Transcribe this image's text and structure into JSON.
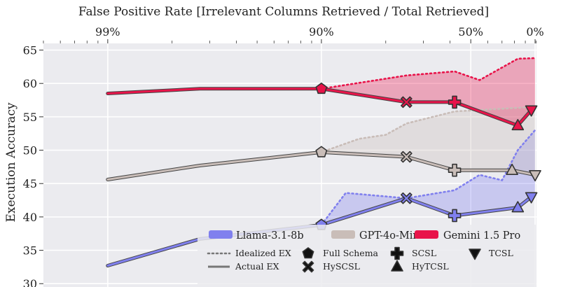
{
  "chart_data": {
    "type": "line",
    "title": "False Positive Rate [Irrelevant Columns Retrieved / Total Retrieved]",
    "ylabel": "Execution Accuracy",
    "xlabel": "",
    "xscale": "log (100 - FPR)",
    "xlim": [
      99.5,
      -1.5
    ],
    "ylim": [
      29.5,
      66
    ],
    "x_ticks": [
      {
        "value": 99,
        "label": "99%"
      },
      {
        "value": 90,
        "label": "90%"
      },
      {
        "value": 50,
        "label": "50%"
      },
      {
        "value": 0,
        "label": "0%"
      }
    ],
    "y_ticks": [
      30,
      35,
      40,
      45,
      50,
      55,
      60,
      65
    ],
    "grid": true,
    "series": [
      {
        "name": "Llama-3.1-8b",
        "color": "#8080ee",
        "actual": [
          [
            99,
            32.7
          ],
          [
            97.3,
            36.7
          ],
          [
            90,
            38.8
          ],
          [
            75,
            42.8
          ],
          [
            58,
            40.2
          ],
          [
            17,
            41.4
          ],
          [
            4,
            43.0
          ]
        ],
        "idealized": [
          [
            99,
            32.7
          ],
          [
            97.3,
            36.7
          ],
          [
            90,
            38.8
          ],
          [
            87,
            43.6
          ],
          [
            75,
            42.8
          ],
          [
            58,
            44.0
          ],
          [
            45,
            46.3
          ],
          [
            30,
            45.5
          ],
          [
            17,
            50.0
          ],
          [
            0,
            53.0
          ]
        ],
        "markers": [
          {
            "x": 90,
            "y": 38.8,
            "method": "Full Schema"
          },
          {
            "x": 75,
            "y": 42.8,
            "method": "HySCSL"
          },
          {
            "x": 58,
            "y": 40.2,
            "method": "SCSL"
          },
          {
            "x": 17,
            "y": 41.4,
            "method": "HyTCSL"
          },
          {
            "x": 4,
            "y": 43.0,
            "method": "TCSL"
          }
        ]
      },
      {
        "name": "GPT-4o-Mini",
        "color": "#c9bdb8",
        "actual": [
          [
            99,
            45.6
          ],
          [
            97.3,
            47.7
          ],
          [
            90,
            49.7
          ],
          [
            75,
            49.0
          ],
          [
            58,
            47.0
          ],
          [
            22,
            47.0
          ],
          [
            0,
            46.3
          ]
        ],
        "idealized": [
          [
            99,
            45.6
          ],
          [
            97.3,
            47.7
          ],
          [
            90,
            49.7
          ],
          [
            85,
            51.7
          ],
          [
            80,
            52.3
          ],
          [
            75,
            54.0
          ],
          [
            58,
            55.8
          ],
          [
            0,
            56.5
          ]
        ],
        "markers": [
          {
            "x": 90,
            "y": 49.7,
            "method": "Full Schema"
          },
          {
            "x": 75,
            "y": 49.0,
            "method": "HySCSL"
          },
          {
            "x": 58,
            "y": 47.0,
            "method": "SCSL"
          },
          {
            "x": 22,
            "y": 47.0,
            "method": "HyTCSL"
          },
          {
            "x": 0,
            "y": 46.3,
            "method": "TCSL"
          }
        ]
      },
      {
        "name": "Gemini 1.5 Pro",
        "color": "#e8144a",
        "actual": [
          [
            99,
            58.5
          ],
          [
            97.3,
            59.2
          ],
          [
            90,
            59.2
          ],
          [
            75,
            57.2
          ],
          [
            58,
            57.2
          ],
          [
            17,
            53.7
          ],
          [
            4,
            56.0
          ]
        ],
        "idealized": [
          [
            99,
            58.5
          ],
          [
            97.3,
            59.2
          ],
          [
            90,
            59.2
          ],
          [
            75,
            61.2
          ],
          [
            58,
            61.8
          ],
          [
            45,
            60.5
          ],
          [
            17,
            63.7
          ],
          [
            0,
            63.8
          ]
        ],
        "markers": [
          {
            "x": 90,
            "y": 59.2,
            "method": "Full Schema"
          },
          {
            "x": 75,
            "y": 57.2,
            "method": "HySCSL"
          },
          {
            "x": 58,
            "y": 57.2,
            "method": "SCSL"
          },
          {
            "x": 17,
            "y": 53.7,
            "method": "HyTCSL"
          },
          {
            "x": 4,
            "y": 56.0,
            "method": "TCSL"
          }
        ]
      }
    ],
    "legend": {
      "placement": "bottom-right",
      "line_styles": [
        {
          "label": "Idealized EX",
          "style": "dotted"
        },
        {
          "label": "Actual EX",
          "style": "solid"
        }
      ],
      "methods": [
        {
          "label": "Full Schema",
          "marker": "pentagon"
        },
        {
          "label": "HySCSL",
          "marker": "x"
        },
        {
          "label": "SCSL",
          "marker": "plus"
        },
        {
          "label": "HyTCSL",
          "marker": "triangle-up"
        },
        {
          "label": "TCSL",
          "marker": "triangle-down"
        }
      ]
    }
  }
}
